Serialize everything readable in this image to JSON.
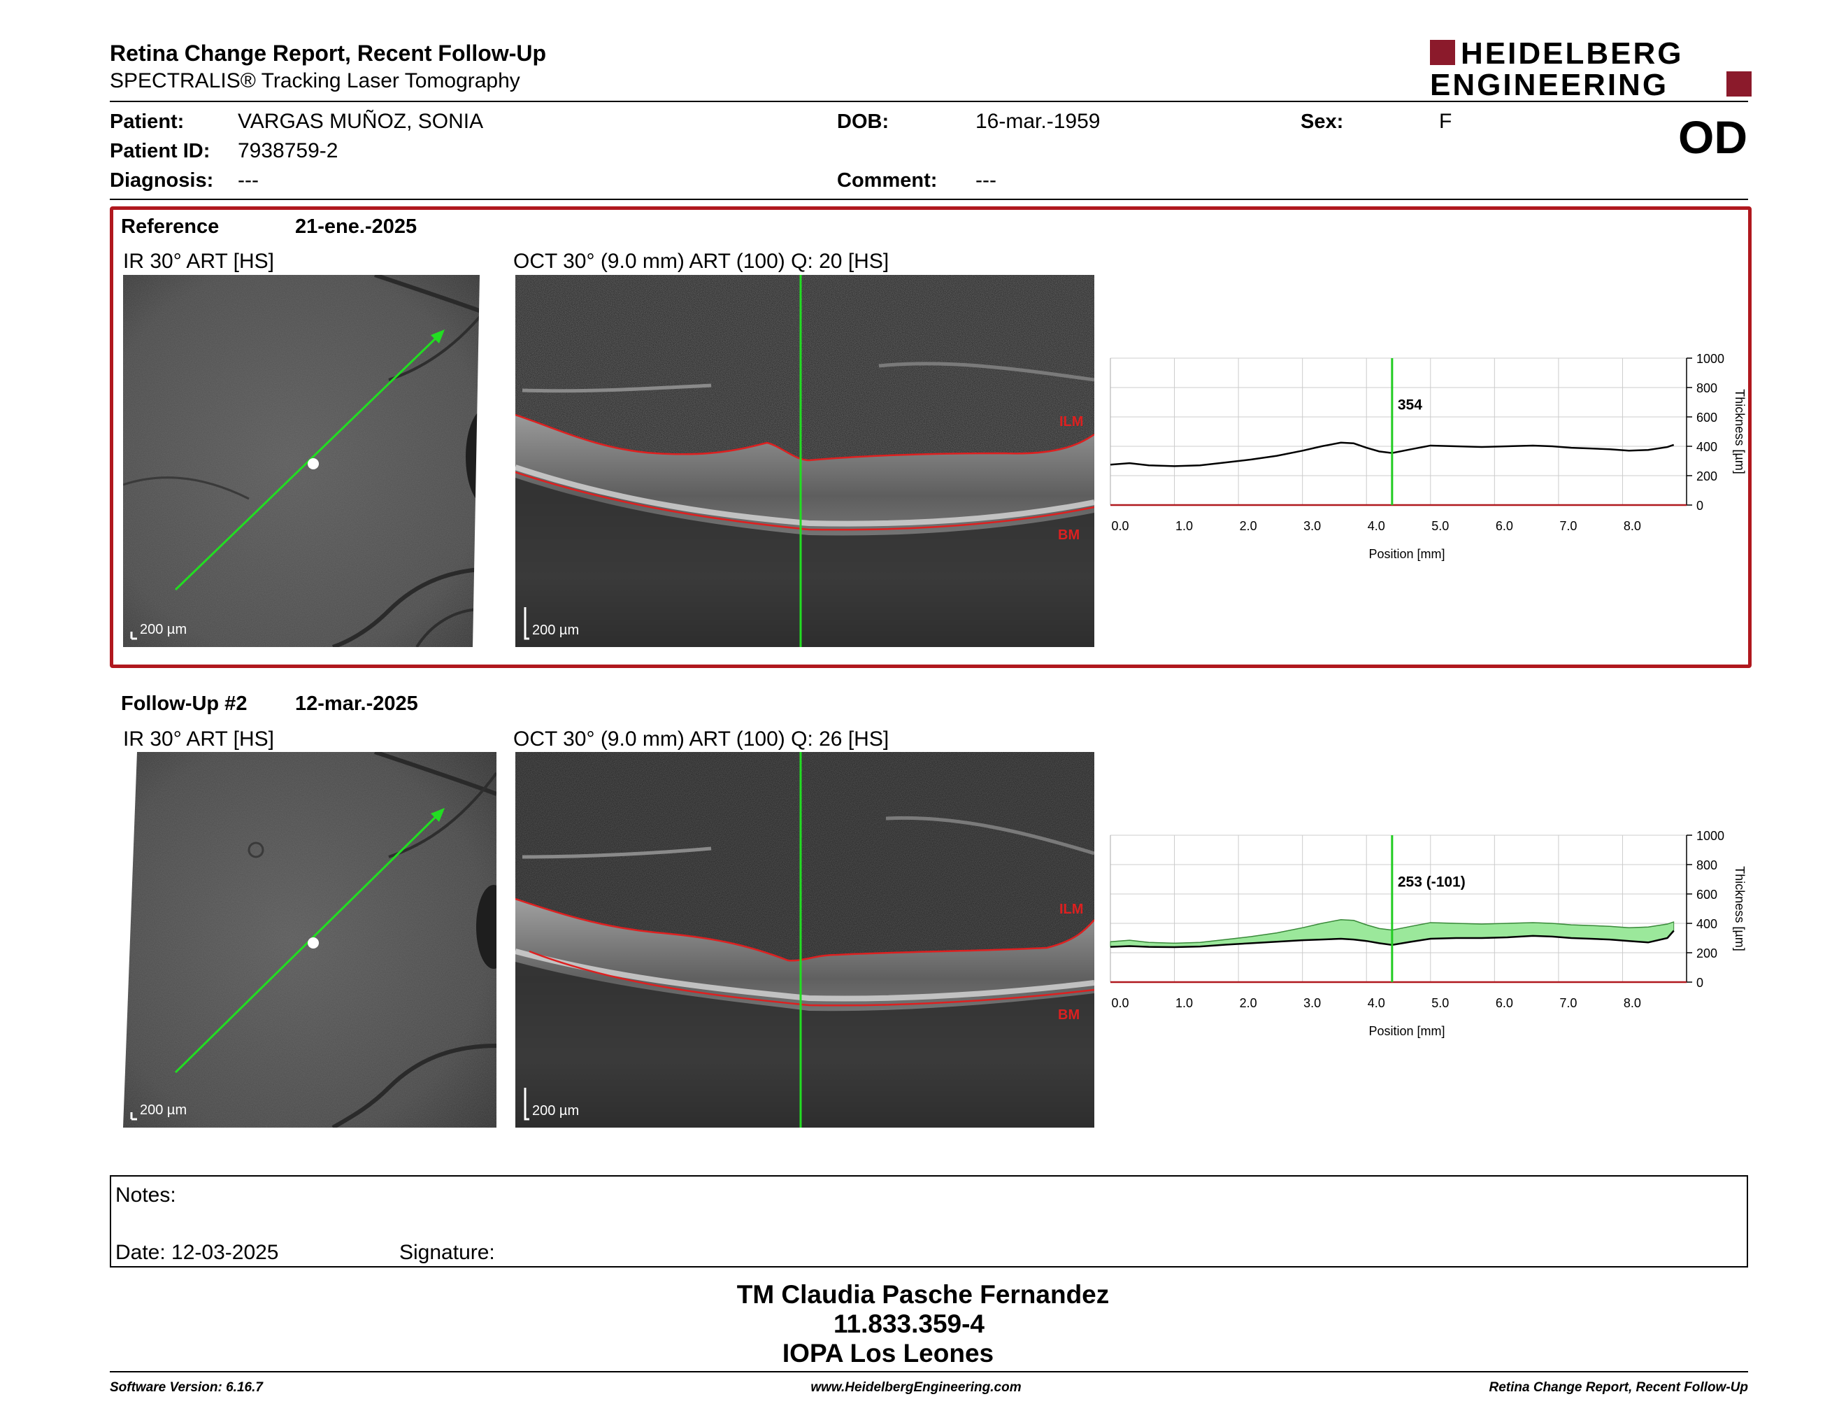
{
  "header": {
    "title": "Retina Change Report, Recent Follow-Up",
    "subtitle": "SPECTRALIS® Tracking Laser Tomography",
    "logo_line1": "HEIDELBERG",
    "logo_line2": "ENGINEERING",
    "logo_color": "#8b1a2b"
  },
  "patient": {
    "patient_label": "Patient:",
    "patient_value": "VARGAS MUÑOZ, SONIA",
    "id_label": "Patient ID:",
    "id_value": "7938759-2",
    "diagnosis_label": "Diagnosis:",
    "diagnosis_value": "---",
    "dob_label": "DOB:",
    "dob_value": "16-mar.-1959",
    "comment_label": "Comment:",
    "comment_value": "---",
    "sex_label": "Sex:",
    "sex_value": "F",
    "eye": "OD"
  },
  "reference": {
    "label": "Reference",
    "date": "21-ene.-2025",
    "ir_label": "IR 30° ART [HS]",
    "oct_label": "OCT 30° (9.0 mm) ART (100) Q: 20 [HS]",
    "ir_scale": "200 µm",
    "oct_scale": "200 µm",
    "ilm": "ILM",
    "bm": "BM",
    "highlight_color": "#b0181e"
  },
  "followup": {
    "label": "Follow-Up #2",
    "date": "12-mar.-2025",
    "ir_label": "IR 30° ART [HS]",
    "oct_label": "OCT 30° (9.0 mm) ART (100) Q: 26 [HS]",
    "ir_scale": "200 µm",
    "oct_scale": "200 µm",
    "ilm": "ILM",
    "bm": "BM"
  },
  "chart_data": [
    {
      "type": "line",
      "xlabel": "Position [mm]",
      "ylabel": "Thickness [µm]",
      "xlim": [
        0,
        9.0
      ],
      "ylim": [
        0,
        1000
      ],
      "x_ticks": [
        "0.0",
        "1.0",
        "2.0",
        "3.0",
        "4.0",
        "5.0",
        "6.0",
        "7.0",
        "8.0"
      ],
      "y_ticks": [
        "0",
        "200",
        "400",
        "600",
        "800",
        "1000"
      ],
      "grid": true,
      "cursor_x": 4.4,
      "cursor_label": "354",
      "series": [
        {
          "x": [
            0.0,
            0.3,
            0.6,
            1.0,
            1.4,
            1.8,
            2.2,
            2.6,
            3.0,
            3.3,
            3.6,
            3.8,
            4.0,
            4.2,
            4.4,
            4.7,
            5.0,
            5.4,
            5.8,
            6.2,
            6.6,
            6.9,
            7.2,
            7.5,
            7.8,
            8.1,
            8.4,
            8.7,
            8.8
          ],
          "y": [
            275,
            285,
            270,
            265,
            270,
            290,
            310,
            335,
            370,
            400,
            425,
            420,
            390,
            365,
            354,
            380,
            405,
            400,
            395,
            400,
            405,
            400,
            390,
            385,
            380,
            370,
            375,
            395,
            410
          ]
        }
      ],
      "colors": {
        "line": "#000000",
        "cursor": "#22cc22",
        "baseline": "#b0181e"
      }
    },
    {
      "type": "area",
      "xlabel": "Position [mm]",
      "ylabel": "Thickness [µm]",
      "xlim": [
        0,
        9.0
      ],
      "ylim": [
        0,
        1000
      ],
      "x_ticks": [
        "0.0",
        "1.0",
        "2.0",
        "3.0",
        "4.0",
        "5.0",
        "6.0",
        "7.0",
        "8.0"
      ],
      "y_ticks": [
        "0",
        "200",
        "400",
        "600",
        "800",
        "1000"
      ],
      "grid": true,
      "cursor_x": 4.4,
      "cursor_label": "253 (-101)",
      "series": [
        {
          "x": [
            0.0,
            0.3,
            0.6,
            1.0,
            1.4,
            1.8,
            2.2,
            2.6,
            3.0,
            3.3,
            3.6,
            3.8,
            4.0,
            4.2,
            4.4,
            4.7,
            5.0,
            5.4,
            5.8,
            6.2,
            6.6,
            6.9,
            7.2,
            7.5,
            7.8,
            8.1,
            8.4,
            8.7,
            8.8
          ],
          "y": [
            275,
            285,
            270,
            265,
            270,
            290,
            310,
            335,
            370,
            400,
            425,
            420,
            390,
            365,
            354,
            380,
            405,
            400,
            395,
            400,
            405,
            400,
            390,
            385,
            380,
            370,
            375,
            395,
            410
          ]
        },
        {
          "x": [
            0.0,
            0.3,
            0.6,
            1.0,
            1.4,
            1.8,
            2.2,
            2.6,
            3.0,
            3.3,
            3.6,
            3.8,
            4.0,
            4.2,
            4.4,
            4.7,
            5.0,
            5.4,
            5.8,
            6.2,
            6.6,
            6.9,
            7.2,
            7.5,
            7.8,
            8.1,
            8.4,
            8.7,
            8.8
          ],
          "y": [
            240,
            245,
            240,
            238,
            242,
            255,
            265,
            275,
            285,
            290,
            295,
            290,
            280,
            265,
            253,
            275,
            295,
            300,
            300,
            305,
            315,
            310,
            300,
            295,
            290,
            280,
            270,
            300,
            350
          ]
        }
      ],
      "colors": {
        "line": "#000000",
        "fill": "#9be89b",
        "cursor": "#22cc22",
        "baseline": "#b0181e"
      }
    }
  ],
  "notes": {
    "notes_label": "Notes:",
    "date_label": "Date: 12-03-2025",
    "signature_label": "Signature:"
  },
  "footer": {
    "name": "TM Claudia Pasche Fernandez",
    "rut": "11.833.359-4",
    "place": "IOPA Los Leones",
    "software": "Software Version: 6.16.7",
    "website": "www.HeidelbergEngineering.com",
    "report_name": "Retina Change Report, Recent Follow-Up"
  }
}
